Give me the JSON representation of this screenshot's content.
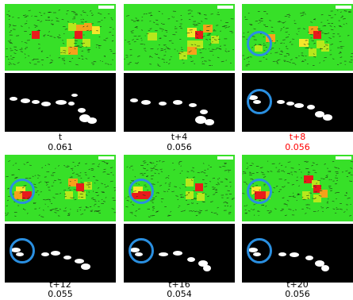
{
  "colors": {
    "background": "#37e028",
    "yellow_green": "#b7e81c",
    "yellow": "#f5e62a",
    "orange": "#f5a21a",
    "red": "#e81b1b",
    "highlight_circle": "#2a8fe0",
    "highlight_text": "#ff0000"
  },
  "panels": [
    {
      "time": "t",
      "score": "0.061",
      "highlighted": false,
      "circled": false
    },
    {
      "time": "t+4",
      "score": "0.056",
      "highlighted": false,
      "circled": false
    },
    {
      "time": "t+8",
      "score": "0.056",
      "highlighted": true,
      "circled": true
    },
    {
      "time": "t+12",
      "score": "0.055",
      "highlighted": false,
      "circled": true
    },
    {
      "time": "t+16",
      "score": "0.054",
      "highlighted": false,
      "circled": true
    },
    {
      "time": "t+20",
      "score": "0.056",
      "highlighted": false,
      "circled": true
    }
  ]
}
